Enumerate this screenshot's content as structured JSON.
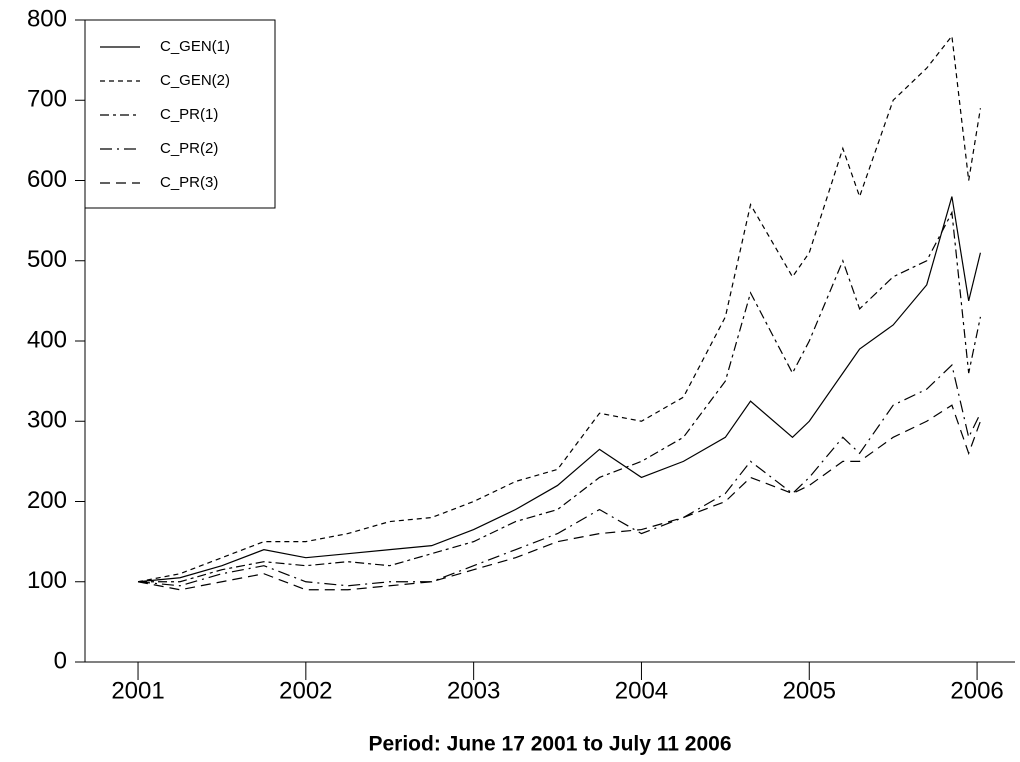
{
  "chart_data": {
    "type": "line",
    "xlabel": "Period: June 17 2001 to July 11 2006",
    "x": [
      2001,
      2001.25,
      2001.5,
      2001.75,
      2002,
      2002.25,
      2002.5,
      2002.75,
      2003,
      2003.25,
      2003.5,
      2003.75,
      2004,
      2004.25,
      2004.5,
      2004.65,
      2004.9,
      2005,
      2005.2,
      2005.3,
      2005.5,
      2005.7,
      2005.85,
      2005.95,
      2006.02
    ],
    "series": [
      {
        "name": "C_GEN(1)",
        "color": "#000000",
        "dash": "none",
        "values": [
          100,
          105,
          120,
          140,
          130,
          135,
          140,
          145,
          165,
          190,
          220,
          265,
          230,
          250,
          280,
          325,
          280,
          300,
          360,
          390,
          420,
          470,
          580,
          450,
          510
        ]
      },
      {
        "name": "C_GEN(2)",
        "color": "#000000",
        "dash": "5,4",
        "values": [
          100,
          110,
          130,
          150,
          150,
          160,
          175,
          180,
          200,
          225,
          240,
          310,
          300,
          330,
          430,
          570,
          480,
          510,
          640,
          580,
          700,
          740,
          780,
          600,
          690
        ]
      },
      {
        "name": "C_PR(1)",
        "color": "#000000",
        "dash": "9,4,3,4",
        "values": [
          100,
          100,
          115,
          125,
          120,
          125,
          120,
          135,
          150,
          175,
          190,
          230,
          250,
          280,
          350,
          460,
          360,
          400,
          500,
          440,
          480,
          500,
          560,
          360,
          430
        ]
      },
      {
        "name": "C_PR(2)",
        "color": "#000000",
        "dash": "12,5,2,5",
        "values": [
          100,
          95,
          110,
          120,
          100,
          95,
          100,
          100,
          120,
          140,
          160,
          190,
          160,
          180,
          210,
          250,
          210,
          230,
          280,
          260,
          320,
          340,
          370,
          280,
          310
        ]
      },
      {
        "name": "C_PR(3)",
        "color": "#000000",
        "dash": "10,6",
        "values": [
          100,
          90,
          100,
          110,
          90,
          90,
          95,
          100,
          115,
          130,
          150,
          160,
          165,
          180,
          200,
          230,
          210,
          220,
          250,
          250,
          280,
          300,
          320,
          260,
          300
        ]
      }
    ],
    "xlim": [
      2000.684,
      2006.226
    ],
    "xticks": [
      2001,
      2002,
      2003,
      2004,
      2005,
      2006
    ],
    "ylim": [
      0,
      800
    ],
    "yticks": [
      0,
      100,
      200,
      300,
      400,
      500,
      600,
      700,
      800
    ],
    "legend": "upper-left"
  }
}
